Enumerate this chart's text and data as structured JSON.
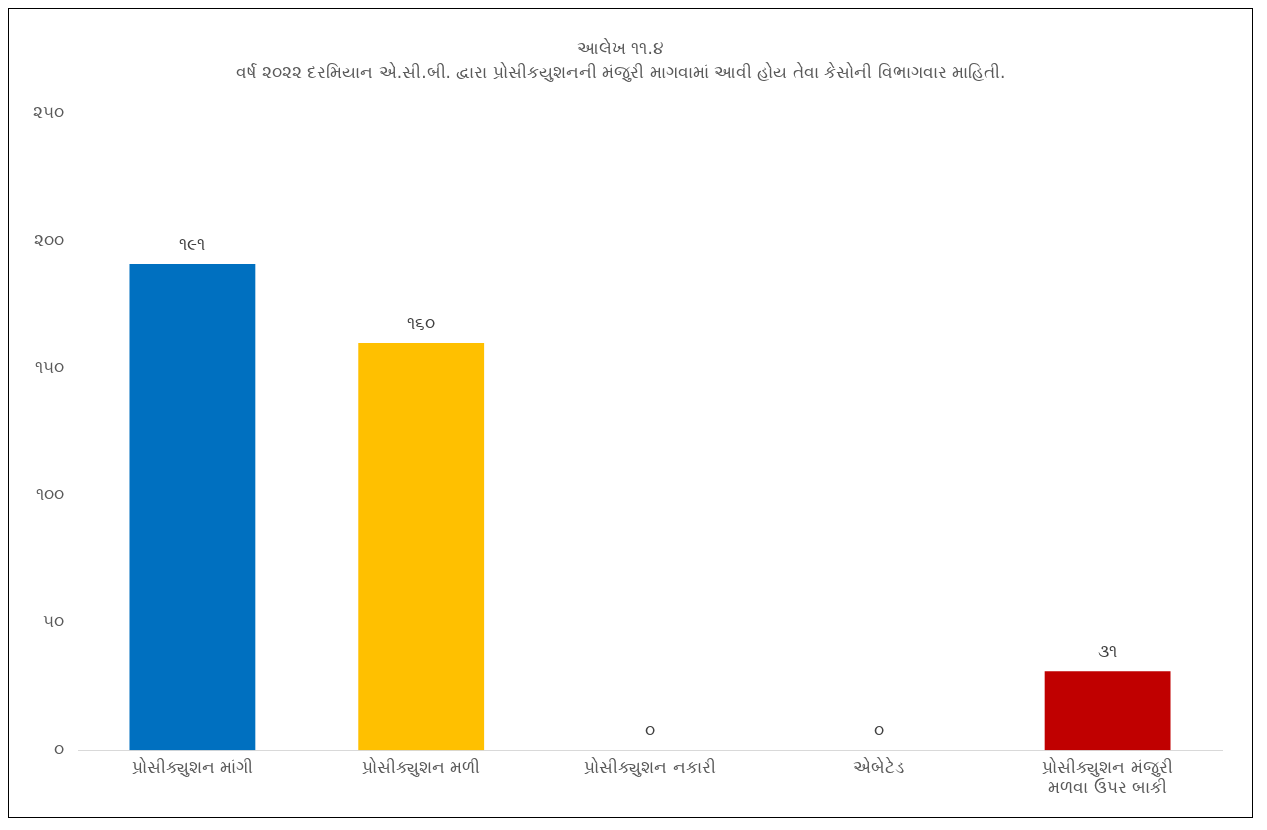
{
  "chart_data": {
    "type": "bar",
    "title": "આલેખ ૧૧.૪",
    "subtitle": "વર્ષ ૨૦૨૨ દરમિયાન એ.સી.બી. દ્વારા પ્રોસીકયુશનની મંજુરી માગવામાં આવી હોય તેવા કેસોની વિભાગવાર માહિતી.",
    "categories": [
      "પ્રોસીક્યુશન માંગી",
      "પ્રોસીક્યુશન મળી",
      "પ્રોસીક્યુશન નકારી",
      "એબેટેડ",
      "પ્રોસીક્યુશન મંજુરી મળવા ઉપર બાકી"
    ],
    "values": [
      191,
      160,
      0,
      0,
      31
    ],
    "colors": [
      "#0070c0",
      "#ffc000",
      "#a5a5a5",
      "#4472c4",
      "#c00000"
    ],
    "value_labels": [
      "૧૯૧",
      "૧૬૦",
      "૦",
      "૦",
      "૩૧"
    ],
    "ylim": [
      0,
      250
    ],
    "yticks": [
      {
        "value": 0,
        "label": "૦"
      },
      {
        "value": 50,
        "label": "૫૦"
      },
      {
        "value": 100,
        "label": "૧૦૦"
      },
      {
        "value": 150,
        "label": "૧૫૦"
      },
      {
        "value": 200,
        "label": "૨૦૦"
      },
      {
        "value": 250,
        "label": "૨૫૦"
      }
    ],
    "grid": false,
    "legend": false
  }
}
